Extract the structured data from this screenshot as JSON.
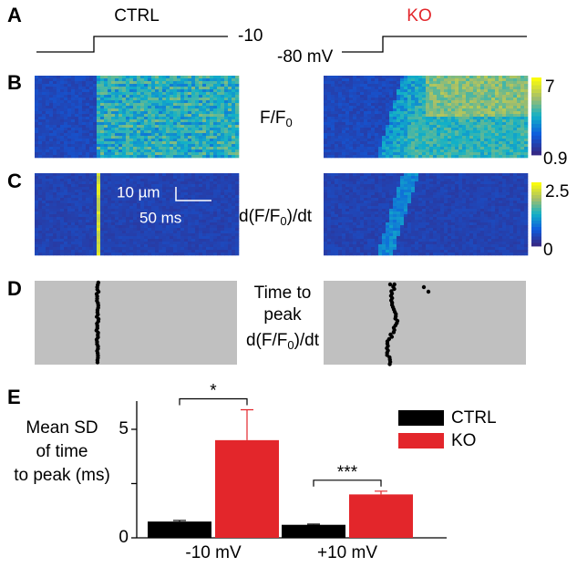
{
  "panel_labels": [
    "A",
    "B",
    "C",
    "D",
    "E"
  ],
  "conditions": {
    "ctrl": "CTRL",
    "ko": "KO"
  },
  "voltage_labels": {
    "step": "-10",
    "holding": "-80 mV"
  },
  "heatmap_labels": {
    "ratio": {
      "main": "F/F",
      "sub": "0"
    },
    "derivative": {
      "pre": "d(F/F",
      "sub": "0",
      "post": ")/dt"
    }
  },
  "colorbars": [
    {
      "max": 7,
      "min": 0.9
    },
    {
      "max": 2.5,
      "min": 0
    }
  ],
  "scale_bar": {
    "length": "10 µm",
    "time": "50 ms"
  },
  "time_to_peak_label": {
    "lines": [
      "Time to",
      "peak"
    ],
    "derivative": {
      "pre": "d(F/F",
      "sub": "0",
      "post": ")/dt"
    }
  },
  "chart_data": {
    "type": "bar",
    "ylabel": [
      "Mean SD",
      "of time",
      "to peak (ms)"
    ],
    "categories": [
      "-10 mV",
      "+10 mV"
    ],
    "series": [
      {
        "name": "CTRL",
        "color": "#000000",
        "values": [
          0.75,
          0.6
        ],
        "errors": [
          0.05,
          0.03
        ]
      },
      {
        "name": "KO",
        "color": "#e3262b",
        "values": [
          4.5,
          2.0
        ],
        "errors": [
          1.4,
          0.15
        ]
      }
    ],
    "significance": [
      "*",
      "***"
    ],
    "ylim": [
      0,
      6.3
    ],
    "yticks": [
      0,
      5
    ],
    "minor_yticks": [
      2.5
    ]
  }
}
